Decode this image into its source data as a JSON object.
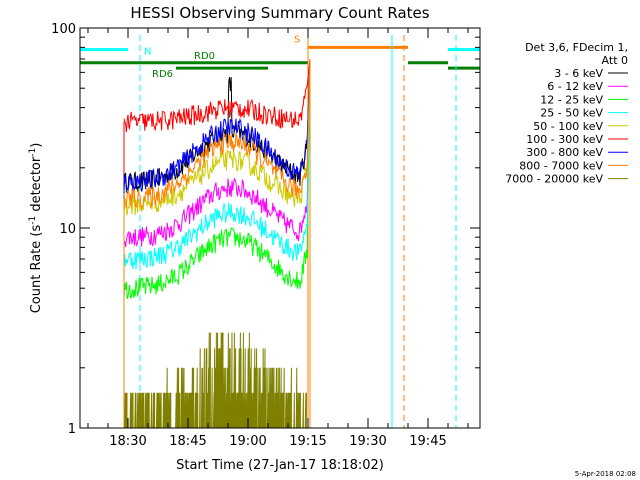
{
  "chart_data": {
    "type": "line",
    "title": "HESSI Observing Summary Count Rates",
    "xlabel": "Start Time (27-Jan-17 18:18:02)",
    "ylabel": "Count Rate (s⁻¹ detector⁻¹)",
    "ylabel_parts": {
      "main": "Count Rate (s",
      "sup1": "-1",
      "mid": " detector",
      "sup2": "-1",
      "end": ")"
    },
    "y_scale": "log",
    "ylim": [
      1,
      100
    ],
    "y_ticks": [
      "1",
      "10",
      "100"
    ],
    "xlim_minutes_after_1818": [
      0,
      100
    ],
    "x_ticks": [
      {
        "label": "18:30",
        "min": 12
      },
      {
        "label": "18:45",
        "min": 27
      },
      {
        "label": "19:00",
        "min": 42
      },
      {
        "label": "19:15",
        "min": 57
      },
      {
        "label": "19:30",
        "min": 72
      },
      {
        "label": "19:45",
        "min": 87
      }
    ],
    "legend_header": [
      "Det 3,6, FDecim 1,",
      "Att 0"
    ],
    "series": [
      {
        "name": "3 - 6 keV",
        "color": "#000000",
        "profile": "bump",
        "base": 17,
        "peak": 30,
        "spike": 52
      },
      {
        "name": "6 - 12 keV",
        "color": "#ff00ff",
        "profile": "bump",
        "base": 9,
        "peak": 16
      },
      {
        "name": "12 - 25 keV",
        "color": "#00ff00",
        "profile": "bump",
        "base": 5,
        "peak": 9
      },
      {
        "name": "25 - 50 keV",
        "color": "#00ffff",
        "profile": "bump",
        "base": 7,
        "peak": 12
      },
      {
        "name": "50 - 100 keV",
        "color": "#cccc00",
        "profile": "bump",
        "base": 13,
        "peak": 22
      },
      {
        "name": "100 - 300 keV",
        "color": "#ff0000",
        "profile": "bump",
        "base": 34,
        "peak": 40
      },
      {
        "name": "300 - 800 keV",
        "color": "#0000ff",
        "profile": "bump",
        "base": 17,
        "peak": 32
      },
      {
        "name": "800 - 7000 keV",
        "color": "#ff8000",
        "profile": "bump",
        "base": 14,
        "peak": 27
      },
      {
        "name": "7000 - 20000 keV",
        "color": "#808000",
        "profile": "quantized",
        "base": 1.5,
        "peak": 3
      }
    ],
    "attenuator_bars": [
      {
        "label": "N",
        "color": "#00ffff",
        "level": 78,
        "segments": [
          [
            0,
            12
          ],
          [
            92,
            100
          ]
        ]
      },
      {
        "label": "S",
        "color": "#ff8000",
        "level": 80,
        "segments": [
          [
            57,
            82
          ]
        ]
      },
      {
        "label": "RD0",
        "color": "#008000",
        "level": 67,
        "segments": [
          [
            0,
            57
          ],
          [
            82,
            92
          ]
        ]
      },
      {
        "label": "RD6",
        "color": "#008000",
        "level": 63,
        "segments": [
          [
            24,
            47
          ],
          [
            92,
            100
          ]
        ]
      }
    ],
    "vertical_markers": [
      {
        "min": 0,
        "color": "#00ffff",
        "style": "solid"
      },
      {
        "min": 15,
        "color": "#00ffff",
        "style": "dashed"
      },
      {
        "min": 57,
        "color": "#ff8000",
        "style": "solid"
      },
      {
        "min": 78,
        "color": "#00ffff",
        "style": "solid"
      },
      {
        "min": 81,
        "color": "#ff8000",
        "style": "dashed"
      },
      {
        "min": 94,
        "color": "#00ffff",
        "style": "dashed"
      }
    ]
  },
  "footer": {
    "date": "5-Apr-2018 02:08"
  }
}
